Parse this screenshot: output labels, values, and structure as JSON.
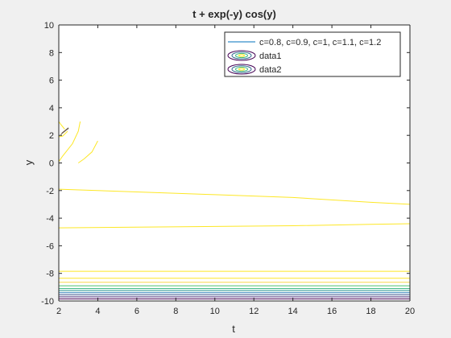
{
  "chart_data": {
    "type": "line",
    "title": "t + exp(-y) cos(y)",
    "xlabel": "t",
    "ylabel": "y",
    "xlim": [
      2,
      20
    ],
    "ylim": [
      -10,
      10
    ],
    "xticks": [
      2,
      4,
      6,
      8,
      10,
      12,
      14,
      16,
      18,
      20
    ],
    "yticks": [
      -10,
      -8,
      -6,
      -4,
      -2,
      0,
      2,
      4,
      6,
      8,
      10
    ],
    "grid": false,
    "legend_position": "top-right",
    "legend": [
      {
        "label": "c=0.8, c=0.9, c=1, c=1.1, c=1.2",
        "marker": "line",
        "color": "#0072BD"
      },
      {
        "label": "data1",
        "marker": "contour-ellipses"
      },
      {
        "label": "data2",
        "marker": "contour-ellipses"
      }
    ],
    "series": [
      {
        "color": "#FDE725",
        "points": [
          [
            2,
            -1.9
          ],
          [
            6,
            -2.1
          ],
          [
            10,
            -2.3
          ],
          [
            14,
            -2.5
          ],
          [
            18,
            -2.85
          ],
          [
            20,
            -3.0
          ]
        ]
      },
      {
        "color": "#FDE725",
        "points": [
          [
            2,
            -4.7
          ],
          [
            6,
            -4.65
          ],
          [
            10,
            -4.6
          ],
          [
            14,
            -4.55
          ],
          [
            18,
            -4.45
          ],
          [
            20,
            -4.4
          ]
        ]
      },
      {
        "color": "#FDE725",
        "points": [
          [
            2,
            -7.85
          ],
          [
            20,
            -7.85
          ]
        ]
      },
      {
        "color": "#FDE725",
        "points": [
          [
            2,
            -8.35
          ],
          [
            20,
            -8.35
          ]
        ]
      },
      {
        "color": "#F5D848",
        "points": [
          [
            2,
            -8.65
          ],
          [
            20,
            -8.65
          ]
        ]
      },
      {
        "color": "#4CC26C",
        "points": [
          [
            2,
            -8.9
          ],
          [
            20,
            -8.9
          ]
        ]
      },
      {
        "color": "#2FB47C",
        "points": [
          [
            2,
            -9.1
          ],
          [
            20,
            -9.1
          ]
        ]
      },
      {
        "color": "#21908C",
        "points": [
          [
            2,
            -9.25
          ],
          [
            20,
            -9.25
          ]
        ]
      },
      {
        "color": "#2C7FB8",
        "points": [
          [
            2,
            -9.4
          ],
          [
            20,
            -9.4
          ]
        ]
      },
      {
        "color": "#3B528B",
        "points": [
          [
            2,
            -9.55
          ],
          [
            20,
            -9.55
          ]
        ]
      },
      {
        "color": "#472D7B",
        "points": [
          [
            2,
            -9.7
          ],
          [
            20,
            -9.7
          ]
        ]
      },
      {
        "color": "#440154",
        "points": [
          [
            2,
            -9.85
          ],
          [
            20,
            -9.85
          ]
        ]
      },
      {
        "color": "#FDE725",
        "points": [
          [
            2,
            1.9
          ],
          [
            2.2,
            1.95
          ],
          [
            2.45,
            2.3
          ]
        ]
      },
      {
        "color": "#FDE725",
        "points": [
          [
            2,
            3.0
          ],
          [
            2.1,
            2.8
          ],
          [
            2.3,
            2.45
          ]
        ]
      },
      {
        "color": "#FDE725",
        "points": [
          [
            3.1,
            3.0
          ],
          [
            3.0,
            2.3
          ],
          [
            2.7,
            1.4
          ],
          [
            2.2,
            0.5
          ],
          [
            2.0,
            0.1
          ]
        ]
      },
      {
        "color": "#FDE725",
        "points": [
          [
            3.0,
            0.0
          ],
          [
            3.3,
            0.3
          ],
          [
            3.7,
            0.8
          ],
          [
            4.0,
            1.6
          ]
        ]
      },
      {
        "color": "#8C7B60",
        "points": [
          [
            2.1,
            2.05
          ],
          [
            2.35,
            2.35
          ],
          [
            2.5,
            2.5
          ]
        ]
      },
      {
        "color": "#5E4F40",
        "points": [
          [
            2.15,
            2.15
          ],
          [
            2.5,
            2.55
          ]
        ]
      }
    ]
  }
}
